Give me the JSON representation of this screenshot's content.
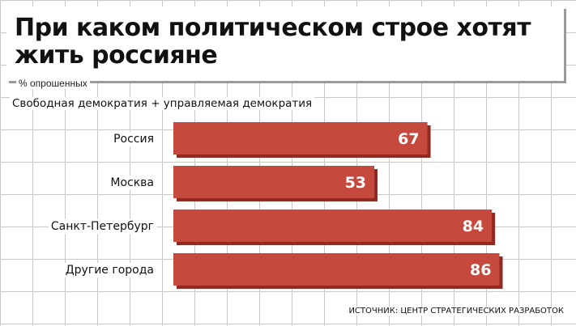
{
  "header": {
    "title": "При каком политическом строе хотят жить россияне",
    "unit_note": "% опрошенных",
    "subtitle": "Свободная демократия + управляемая демократия"
  },
  "chart_data": {
    "type": "bar",
    "orientation": "horizontal",
    "categories": [
      "Россия",
      "Москва",
      "Санкт-Петербург",
      "Другие города"
    ],
    "values": [
      67,
      53,
      84,
      86
    ],
    "value_labels": [
      "67",
      "53",
      "84",
      "86"
    ],
    "title": "При каком политическом строе хотят жить россияне",
    "subtitle": "Свободная демократия + управляемая демократия",
    "unit": "% опрошенных",
    "xlim": [
      0,
      100
    ],
    "grid": true,
    "legend": "none",
    "bar_color": "#c5493d",
    "bar_shadow_color": "#8f2b22",
    "value_label_color": "#ffffff"
  },
  "footer": {
    "source": "ИСТОЧНИК: ЦЕНТР СТРАТЕГИЧЕСКИХ РАЗРАБОТОК"
  }
}
